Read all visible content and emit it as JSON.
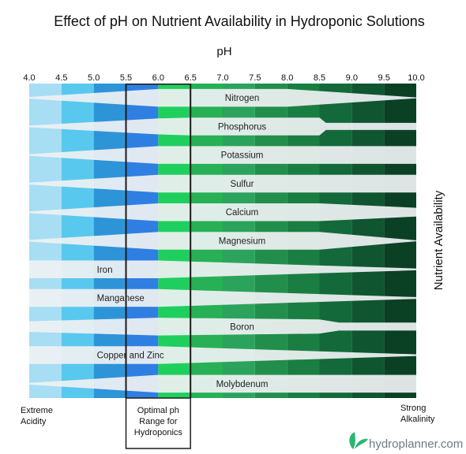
{
  "chart_data": {
    "type": "area",
    "title": "Effect of pH on Nutrient Availability in Hydroponic Solutions",
    "xlabel": "pH",
    "ylabel": "Nutrient Availability",
    "x_ticks": [
      "4.0",
      "4.5",
      "5.0",
      "5.5",
      "6.0",
      "6.5",
      "7.0",
      "7.5",
      "8.0",
      "8.5",
      "9.0",
      "9.5",
      "10.0"
    ],
    "xlim": [
      4.0,
      10.0
    ],
    "band_colors": [
      "#a7def3",
      "#59c8ee",
      "#2e94d8",
      "#2f7fe2",
      "#1fcf5e",
      "#27b055",
      "#2ba35c",
      "#218f4b",
      "#1a7e42",
      "#14693a",
      "#0f5530",
      "#0a4124",
      "#052f16"
    ],
    "optimal_range": {
      "from": 5.5,
      "to": 6.5,
      "label": [
        "Optimal ph",
        "Range for",
        "Hydroponics"
      ]
    },
    "left_note": [
      "Extreme",
      "Acidity"
    ],
    "right_note": [
      "Strong",
      "Alkalinity"
    ],
    "series": [
      {
        "name": "Nitrogen",
        "x": [
          4.0,
          5.0,
          6.0,
          8.0,
          10.0
        ],
        "availability": [
          0.1,
          0.55,
          1.0,
          1.0,
          0.05
        ]
      },
      {
        "name": "Phosphorus",
        "x": [
          4.0,
          5.0,
          6.0,
          6.5,
          8.5,
          8.6,
          10.0
        ],
        "availability": [
          0.1,
          0.5,
          0.9,
          1.0,
          1.0,
          0.4,
          0.4
        ]
      },
      {
        "name": "Potassium",
        "x": [
          4.0,
          6.0,
          10.0
        ],
        "availability": [
          0.1,
          1.0,
          1.0
        ]
      },
      {
        "name": "Sulfur",
        "x": [
          4.0,
          6.0,
          10.0
        ],
        "availability": [
          0.1,
          1.0,
          1.0
        ]
      },
      {
        "name": "Calcium",
        "x": [
          4.0,
          6.0,
          8.5,
          10.0
        ],
        "availability": [
          0.1,
          1.0,
          1.0,
          0.5
        ]
      },
      {
        "name": "Magnesium",
        "x": [
          4.0,
          6.0,
          8.5,
          10.0
        ],
        "availability": [
          0.1,
          1.0,
          1.0,
          0.05
        ]
      },
      {
        "name": "Iron",
        "x": [
          4.0,
          6.0,
          10.0
        ],
        "availability": [
          1.0,
          1.0,
          0.1
        ]
      },
      {
        "name": "Manganese",
        "x": [
          4.0,
          6.0,
          10.0
        ],
        "availability": [
          1.0,
          1.0,
          0.1
        ]
      },
      {
        "name": "Boron",
        "x": [
          4.0,
          6.0,
          8.5,
          8.8,
          10.0
        ],
        "availability": [
          0.6,
          1.0,
          0.8,
          0.45,
          0.45
        ]
      },
      {
        "name": "Copper and Zinc",
        "x": [
          4.0,
          6.0,
          10.0
        ],
        "availability": [
          1.0,
          1.0,
          0.1
        ]
      },
      {
        "name": "Molybdenum",
        "x": [
          4.0,
          6.0,
          10.0
        ],
        "availability": [
          0.1,
          1.0,
          1.0
        ]
      }
    ]
  },
  "brand": {
    "text": "hydroplanner.com",
    "leaf_color": "#2bb673"
  }
}
